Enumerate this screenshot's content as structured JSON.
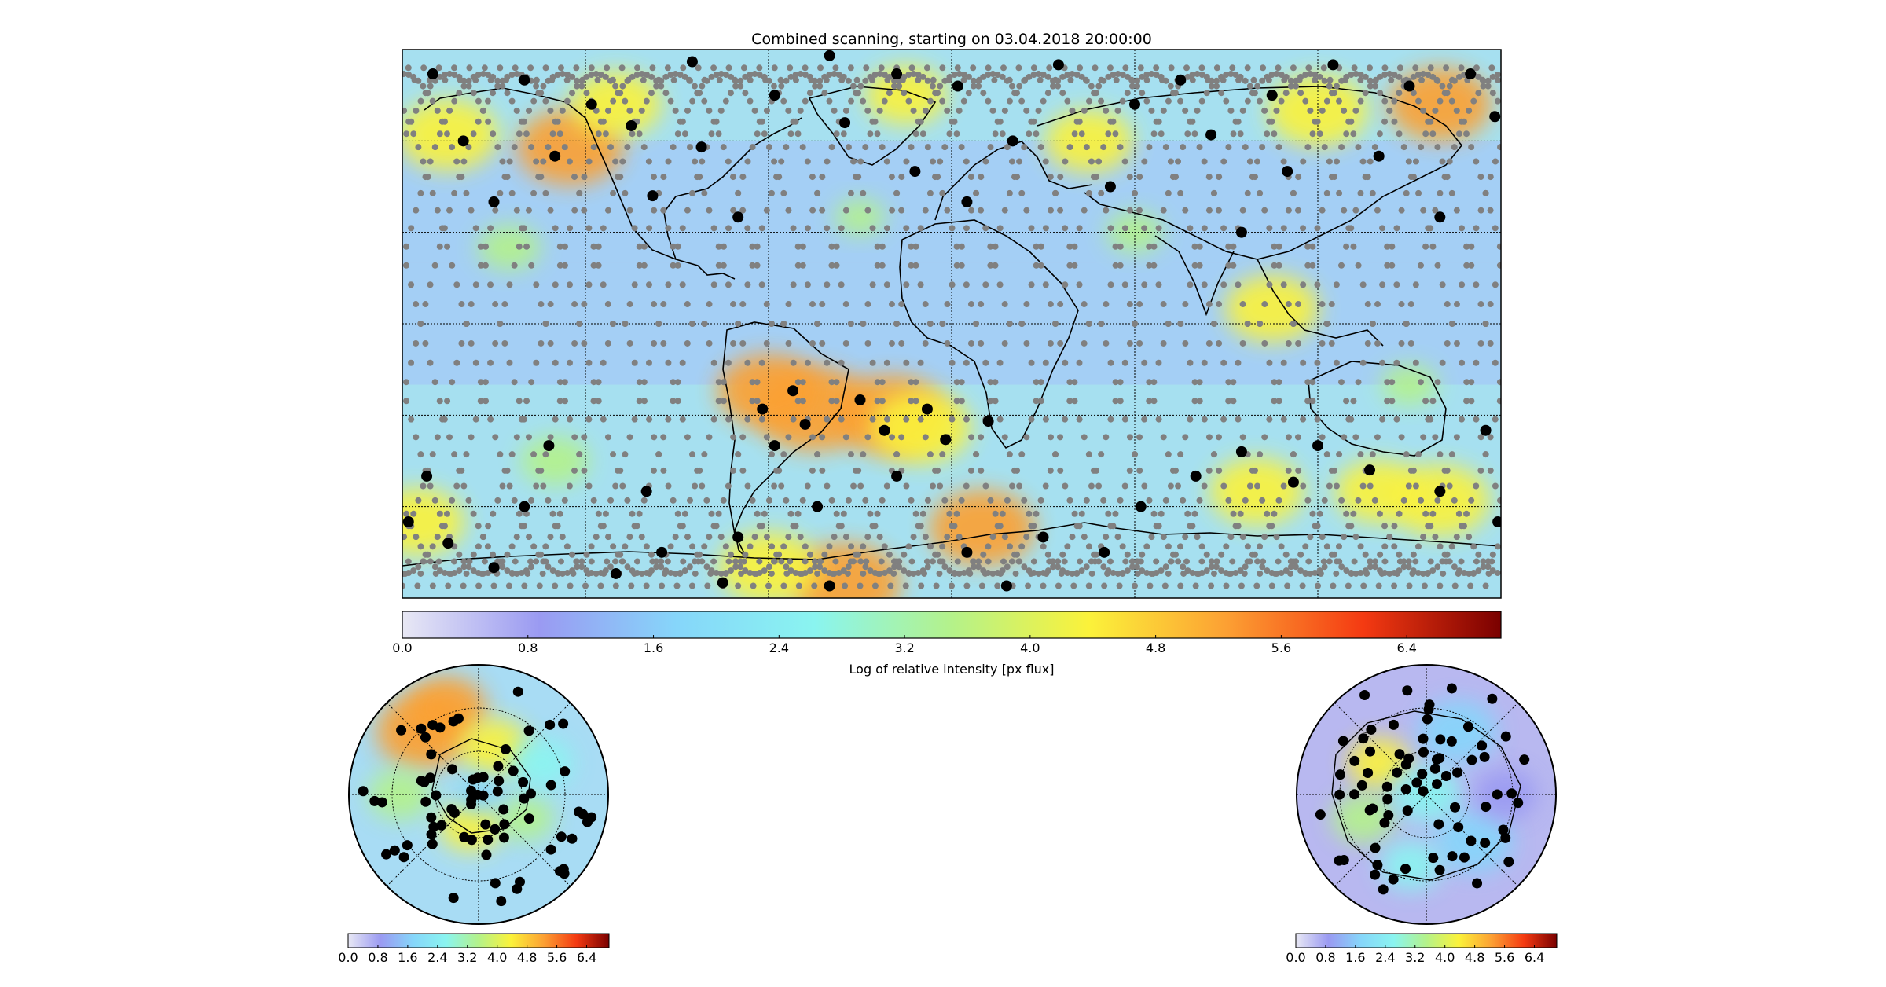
{
  "figure": {
    "title": "Combined scanning, starting on 03.04.2018 20:00:00"
  },
  "colormap": {
    "name": "jet",
    "stops": [
      "#e8e8f4",
      "#9a9af2",
      "#86d6fa",
      "#8af4f0",
      "#b4f28a",
      "#fbf23a",
      "#fca033",
      "#f43a12",
      "#7a0000"
    ],
    "range": [
      0,
      7.0
    ]
  },
  "track_color": "#808080",
  "marker_color": "#000000",
  "chart_data": [
    {
      "type": "heatmap",
      "panel": "main-map",
      "projection": "equirectangular",
      "x": "longitude",
      "y": "latitude",
      "xlim": [
        -180,
        180
      ],
      "ylim": [
        -90,
        90
      ],
      "grid": true,
      "colorbar": {
        "label": "Log of relative intensity [px flux]",
        "ticks": [
          "0.0",
          "0.8",
          "1.6",
          "2.4",
          "3.2",
          "4.0",
          "4.8",
          "5.6",
          "6.4"
        ]
      },
      "hotspots": [
        {
          "lon": -45,
          "lat": -28,
          "value": 5.4
        },
        {
          "lon": -20,
          "lat": -30,
          "value": 5.2
        },
        {
          "lon": -10,
          "lat": -34,
          "value": 4.8
        },
        {
          "lon": -60,
          "lat": -22,
          "value": 4.9
        },
        {
          "lon": -125,
          "lat": 58,
          "value": 5.0
        },
        {
          "lon": -165,
          "lat": 62,
          "value": 4.8
        },
        {
          "lon": 120,
          "lat": 70,
          "value": 4.8
        },
        {
          "lon": 160,
          "lat": 72,
          "value": 4.9
        },
        {
          "lon": -110,
          "lat": 72,
          "value": 4.5
        },
        {
          "lon": 45,
          "lat": 60,
          "value": 4.4
        },
        {
          "lon": -15,
          "lat": 75,
          "value": 4.2
        },
        {
          "lon": 105,
          "lat": 5,
          "value": 4.6
        },
        {
          "lon": 10,
          "lat": -67,
          "value": 5.0
        },
        {
          "lon": 160,
          "lat": -58,
          "value": 4.8
        },
        {
          "lon": 100,
          "lat": -55,
          "value": 4.6
        },
        {
          "lon": 140,
          "lat": -55,
          "value": 4.4
        },
        {
          "lon": -175,
          "lat": -65,
          "value": 4.6
        },
        {
          "lon": -35,
          "lat": -85,
          "value": 5.2
        },
        {
          "lon": -60,
          "lat": -80,
          "value": 4.8
        },
        {
          "lon": -145,
          "lat": 25,
          "value": 3.6
        },
        {
          "lon": 60,
          "lat": 30,
          "value": 3.4
        },
        {
          "lon": -30,
          "lat": 35,
          "value": 3.2
        },
        {
          "lon": 150,
          "lat": -20,
          "value": 3.4
        },
        {
          "lon": -130,
          "lat": -45,
          "value": 3.8
        }
      ],
      "tracks": [
        {
          "lon_at_equator": -174
        },
        {
          "lon_at_equator": -148
        },
        {
          "lon_at_equator": -122
        },
        {
          "lon_at_equator": -96
        },
        {
          "lon_at_equator": -70
        },
        {
          "lon_at_equator": -44
        },
        {
          "lon_at_equator": -18
        },
        {
          "lon_at_equator": 8
        },
        {
          "lon_at_equator": 34
        },
        {
          "lon_at_equator": 60
        },
        {
          "lon_at_equator": 86
        },
        {
          "lon_at_equator": 112
        },
        {
          "lon_at_equator": 138
        },
        {
          "lon_at_equator": 164
        }
      ],
      "inclination_deg": 82,
      "observations": [
        {
          "lon": -172,
          "lat": -50
        },
        {
          "lon": -178,
          "lat": -65
        },
        {
          "lon": -165,
          "lat": -72
        },
        {
          "lon": -150,
          "lat": -80
        },
        {
          "lon": -140,
          "lat": -60
        },
        {
          "lon": -132,
          "lat": -40
        },
        {
          "lon": -110,
          "lat": -82
        },
        {
          "lon": -95,
          "lat": -75
        },
        {
          "lon": -100,
          "lat": -55
        },
        {
          "lon": -75,
          "lat": -85
        },
        {
          "lon": -70,
          "lat": -70
        },
        {
          "lon": -62,
          "lat": -28
        },
        {
          "lon": -58,
          "lat": -40
        },
        {
          "lon": -52,
          "lat": -22
        },
        {
          "lon": -48,
          "lat": -33
        },
        {
          "lon": -44,
          "lat": -60
        },
        {
          "lon": -40,
          "lat": -86
        },
        {
          "lon": -30,
          "lat": -25
        },
        {
          "lon": -22,
          "lat": -35
        },
        {
          "lon": -18,
          "lat": -50
        },
        {
          "lon": -8,
          "lat": -28
        },
        {
          "lon": -2,
          "lat": -38
        },
        {
          "lon": 5,
          "lat": -75
        },
        {
          "lon": 12,
          "lat": -32
        },
        {
          "lon": 18,
          "lat": -86
        },
        {
          "lon": 30,
          "lat": -70
        },
        {
          "lon": 50,
          "lat": -75
        },
        {
          "lon": 62,
          "lat": -60
        },
        {
          "lon": 80,
          "lat": -50
        },
        {
          "lon": 95,
          "lat": -42
        },
        {
          "lon": 112,
          "lat": -52
        },
        {
          "lon": 120,
          "lat": -40
        },
        {
          "lon": 137,
          "lat": -48
        },
        {
          "lon": 160,
          "lat": -55
        },
        {
          "lon": 175,
          "lat": -35
        },
        {
          "lon": 179,
          "lat": -65
        },
        {
          "lon": -170,
          "lat": 82
        },
        {
          "lon": -160,
          "lat": 60
        },
        {
          "lon": -150,
          "lat": 40
        },
        {
          "lon": -140,
          "lat": 80
        },
        {
          "lon": -130,
          "lat": 55
        },
        {
          "lon": -118,
          "lat": 72
        },
        {
          "lon": -105,
          "lat": 65
        },
        {
          "lon": -98,
          "lat": 42
        },
        {
          "lon": -85,
          "lat": 86
        },
        {
          "lon": -82,
          "lat": 58
        },
        {
          "lon": -70,
          "lat": 35
        },
        {
          "lon": -58,
          "lat": 75
        },
        {
          "lon": -40,
          "lat": 88
        },
        {
          "lon": -35,
          "lat": 66
        },
        {
          "lon": -18,
          "lat": 82
        },
        {
          "lon": -12,
          "lat": 50
        },
        {
          "lon": 2,
          "lat": 78
        },
        {
          "lon": 5,
          "lat": 40
        },
        {
          "lon": 20,
          "lat": 60
        },
        {
          "lon": 35,
          "lat": 85
        },
        {
          "lon": 52,
          "lat": 45
        },
        {
          "lon": 60,
          "lat": 72
        },
        {
          "lon": 75,
          "lat": 80
        },
        {
          "lon": 85,
          "lat": 62
        },
        {
          "lon": 105,
          "lat": 75
        },
        {
          "lon": 125,
          "lat": 85
        },
        {
          "lon": 140,
          "lat": 55
        },
        {
          "lon": 150,
          "lat": 78
        },
        {
          "lon": 160,
          "lat": 35
        },
        {
          "lon": 170,
          "lat": 82
        },
        {
          "lon": 178,
          "lat": 68
        },
        {
          "lon": 110,
          "lat": 50
        },
        {
          "lon": 95,
          "lat": 30
        }
      ]
    },
    {
      "type": "heatmap",
      "panel": "south-polar",
      "projection": "polar-stereographic",
      "hemisphere": "south",
      "colorbar": {
        "ticks": [
          "0.0",
          "0.8",
          "1.6",
          "2.4",
          "3.2",
          "4.0",
          "4.8",
          "5.6",
          "6.4"
        ]
      }
    },
    {
      "type": "heatmap",
      "panel": "north-polar",
      "projection": "polar-stereographic",
      "hemisphere": "north",
      "colorbar": {
        "ticks": [
          "0.0",
          "0.8",
          "1.6",
          "2.4",
          "3.2",
          "4.0",
          "4.8",
          "5.6",
          "6.4"
        ]
      }
    }
  ]
}
